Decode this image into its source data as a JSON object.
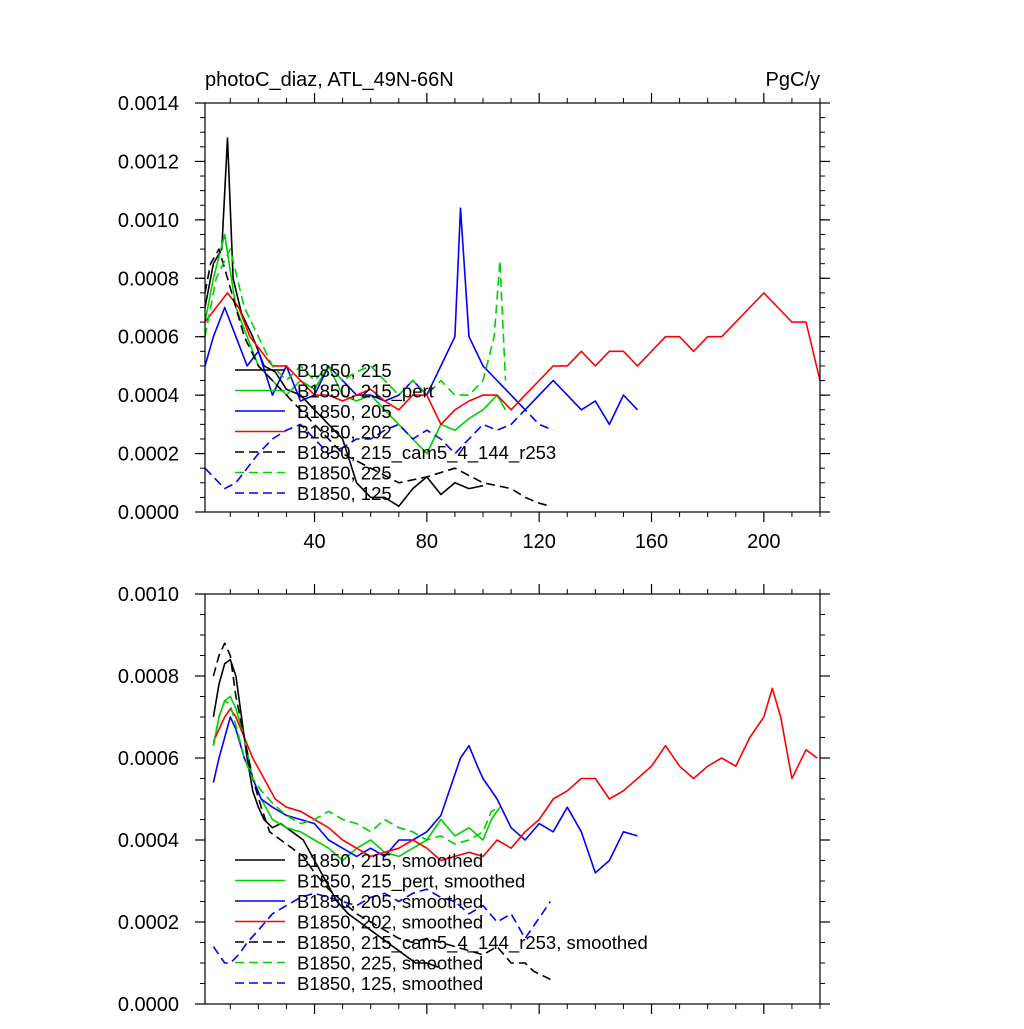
{
  "chart_data": [
    {
      "type": "line",
      "title_left": "photoC_diaz, ATL_49N-66N",
      "title_right": "PgC/y",
      "xlim": [
        1,
        220
      ],
      "ylim": [
        0,
        0.0014
      ],
      "x_ticks": [
        40,
        80,
        120,
        160,
        200
      ],
      "x_tick_labels": [
        "40",
        "80",
        "120",
        "160",
        "200"
      ],
      "y_ticks": [
        0,
        0.0002,
        0.0004,
        0.0006,
        0.0008,
        0.001,
        0.0012,
        0.0014
      ],
      "y_tick_labels": [
        "0.0000",
        "0.0002",
        "0.0004",
        "0.0006",
        "0.0008",
        "0.0010",
        "0.0012",
        "0.0014"
      ],
      "legend": [
        "B1850, 215",
        "B1850, 215_pert",
        "B1850, 205",
        "B1850, 202",
        "B1850, 215_cam5_4_144_r253",
        "B1850, 225",
        "B1850, 125"
      ],
      "series": [
        {
          "name": "B1850, 215",
          "color": "#000000",
          "dash": "solid",
          "x": [
            1,
            4,
            7,
            9,
            11,
            14,
            18,
            22,
            26,
            30,
            35,
            40,
            45,
            50,
            55,
            60,
            65,
            70,
            75,
            80,
            85,
            90,
            95,
            100
          ],
          "values": [
            0.0007,
            0.00085,
            0.0009,
            0.00128,
            0.0008,
            0.00068,
            0.0006,
            0.0005,
            0.00048,
            0.00042,
            0.0004,
            0.00035,
            0.0003,
            0.00025,
            0.0001,
            5e-05,
            5e-05,
            2e-05,
            8e-05,
            0.00012,
            6e-05,
            0.0001,
            8e-05,
            9e-05
          ]
        },
        {
          "name": "B1850, 215_pert",
          "color": "#00d000",
          "dash": "solid",
          "x": [
            1,
            4,
            8,
            12,
            16,
            20,
            25,
            30,
            35,
            40,
            45,
            50,
            55,
            60,
            65,
            70,
            75,
            80,
            85,
            90,
            95,
            100,
            105,
            108
          ],
          "values": [
            0.00065,
            0.0008,
            0.00095,
            0.0007,
            0.0006,
            0.0005,
            0.00045,
            0.0004,
            0.00045,
            0.00042,
            0.0005,
            0.0004,
            0.00038,
            0.0004,
            0.00035,
            0.0003,
            0.00025,
            0.0002,
            0.0003,
            0.00028,
            0.00032,
            0.00035,
            0.0004,
            0.00035
          ]
        },
        {
          "name": "B1850, 205",
          "color": "#0000ff",
          "dash": "solid",
          "x": [
            1,
            4,
            8,
            12,
            16,
            20,
            25,
            30,
            35,
            40,
            45,
            50,
            55,
            60,
            65,
            70,
            75,
            80,
            85,
            90,
            92,
            95,
            100,
            105,
            110,
            115,
            120,
            125,
            130,
            135,
            140,
            145,
            150,
            155
          ],
          "values": [
            0.0005,
            0.0006,
            0.0007,
            0.0006,
            0.0005,
            0.00055,
            0.0004,
            0.0005,
            0.00038,
            0.0004,
            0.0005,
            0.00045,
            0.0004,
            0.0004,
            0.00038,
            0.0004,
            0.00045,
            0.0004,
            0.0005,
            0.0006,
            0.00104,
            0.0006,
            0.0005,
            0.00045,
            0.0004,
            0.00035,
            0.0004,
            0.00045,
            0.0004,
            0.00035,
            0.00038,
            0.0003,
            0.0004,
            0.00035
          ]
        },
        {
          "name": "B1850, 202",
          "color": "#ff0000",
          "dash": "solid",
          "x": [
            1,
            5,
            9,
            13,
            17,
            21,
            25,
            30,
            35,
            40,
            45,
            50,
            55,
            60,
            65,
            70,
            75,
            80,
            85,
            90,
            95,
            100,
            105,
            110,
            115,
            120,
            125,
            130,
            135,
            140,
            145,
            150,
            155,
            160,
            165,
            170,
            175,
            180,
            185,
            190,
            195,
            200,
            205,
            210,
            215,
            220
          ],
          "values": [
            0.00065,
            0.0007,
            0.00075,
            0.0007,
            0.0006,
            0.00055,
            0.0005,
            0.0005,
            0.00045,
            0.0004,
            0.0004,
            0.00038,
            0.0004,
            0.00042,
            0.00038,
            0.00035,
            0.0004,
            0.0004,
            0.0003,
            0.00035,
            0.00038,
            0.0004,
            0.0004,
            0.00035,
            0.0004,
            0.00045,
            0.0005,
            0.0005,
            0.00055,
            0.0005,
            0.00055,
            0.00055,
            0.0005,
            0.00055,
            0.0006,
            0.0006,
            0.00055,
            0.0006,
            0.0006,
            0.00065,
            0.0007,
            0.00075,
            0.0007,
            0.00065,
            0.00065,
            0.00045
          ]
        },
        {
          "name": "B1850, 215_cam5_4_144_r253",
          "color": "#000000",
          "dash": "dashed",
          "x": [
            1,
            3,
            6,
            9,
            12,
            15,
            20,
            25,
            30,
            35,
            40,
            45,
            50,
            60,
            70,
            80,
            90,
            100,
            110,
            115,
            120,
            124
          ],
          "values": [
            0.00075,
            0.00085,
            0.0009,
            0.0008,
            0.0007,
            0.0006,
            0.0005,
            0.00045,
            0.0004,
            0.00035,
            0.0003,
            0.00025,
            0.0002,
            0.00015,
            0.0001,
            0.00012,
            0.00015,
            0.0001,
            8e-05,
            5e-05,
            3e-05,
            2e-05
          ]
        },
        {
          "name": "B1850, 225",
          "color": "#00d000",
          "dash": "dashed",
          "x": [
            1,
            5,
            10,
            15,
            20,
            25,
            30,
            35,
            40,
            45,
            50,
            55,
            60,
            65,
            70,
            75,
            80,
            85,
            90,
            95,
            100,
            104,
            106,
            108
          ],
          "values": [
            0.0006,
            0.0008,
            0.0009,
            0.0007,
            0.0006,
            0.0005,
            0.00045,
            0.0005,
            0.00045,
            0.0005,
            0.00045,
            0.00048,
            0.0005,
            0.00045,
            0.0004,
            0.00045,
            0.0004,
            0.00045,
            0.0004,
            0.0004,
            0.00045,
            0.0006,
            0.00086,
            0.00045
          ]
        },
        {
          "name": "B1850, 125",
          "color": "#0000ff",
          "dash": "dashed",
          "x": [
            1,
            4,
            8,
            12,
            16,
            20,
            25,
            30,
            35,
            40,
            45,
            50,
            55,
            60,
            65,
            70,
            75,
            80,
            85,
            90,
            95,
            100,
            105,
            110,
            115,
            120,
            125
          ],
          "values": [
            0.00015,
            0.00012,
            8e-05,
            0.0001,
            0.00015,
            0.0002,
            0.00025,
            0.00028,
            0.0003,
            0.00025,
            0.0002,
            0.00022,
            0.00025,
            0.00025,
            0.00028,
            0.0003,
            0.00025,
            0.00028,
            0.00025,
            0.0002,
            0.00025,
            0.0003,
            0.00028,
            0.0003,
            0.00035,
            0.0003,
            0.00028
          ]
        }
      ]
    },
    {
      "type": "line",
      "xlim": [
        1,
        220
      ],
      "ylim": [
        0,
        0.001
      ],
      "x_ticks": [
        40,
        80,
        120,
        160,
        200
      ],
      "y_ticks": [
        0,
        0.0002,
        0.0004,
        0.0006,
        0.0008,
        0.001
      ],
      "y_tick_labels": [
        "0.0000",
        "0.0002",
        "0.0004",
        "0.0006",
        "0.0008",
        "0.0010"
      ],
      "legend": [
        "B1850, 215, smoothed",
        "B1850, 215_pert, smoothed",
        "B1850, 205, smoothed",
        "B1850, 202, smoothed",
        "B1850, 215_cam5_4_144_r253, smoothed",
        "B1850, 225, smoothed",
        "B1850, 125, smoothed"
      ],
      "series": [
        {
          "name": "B1850, 215, smoothed",
          "color": "#000000",
          "dash": "solid",
          "x": [
            4,
            6,
            8,
            10,
            12,
            14,
            16,
            18,
            20,
            22,
            25,
            28,
            32,
            36,
            40,
            44,
            48,
            52,
            56,
            60,
            64,
            68,
            72,
            76,
            80,
            84
          ],
          "values": [
            0.0007,
            0.00078,
            0.00083,
            0.00084,
            0.0008,
            0.0007,
            0.0006,
            0.00052,
            0.00048,
            0.00045,
            0.00043,
            0.00044,
            0.00042,
            0.0004,
            0.00035,
            0.0003,
            0.00025,
            0.00022,
            0.0002,
            0.00018,
            0.00016,
            0.00014,
            0.00012,
            0.0001,
            0.0001,
            9e-05
          ]
        },
        {
          "name": "B1850, 215_pert, smoothed",
          "color": "#00d000",
          "dash": "solid",
          "x": [
            4,
            6,
            8,
            10,
            12,
            15,
            18,
            21,
            25,
            30,
            35,
            40,
            45,
            50,
            55,
            60,
            65,
            70,
            75,
            80,
            85,
            90,
            95,
            100,
            103,
            106
          ],
          "values": [
            0.00063,
            0.0007,
            0.00074,
            0.00075,
            0.00072,
            0.00065,
            0.00055,
            0.0005,
            0.00045,
            0.00043,
            0.00042,
            0.0004,
            0.00038,
            0.00035,
            0.00038,
            0.0004,
            0.00037,
            0.00036,
            0.00038,
            0.0004,
            0.00045,
            0.00041,
            0.00043,
            0.0004,
            0.00045,
            0.00048
          ]
        },
        {
          "name": "B1850, 205, smoothed",
          "color": "#0000ff",
          "dash": "solid",
          "x": [
            4,
            6,
            8,
            10,
            12,
            15,
            18,
            21,
            25,
            30,
            35,
            40,
            45,
            50,
            55,
            60,
            65,
            70,
            75,
            80,
            85,
            88,
            92,
            95,
            98,
            100,
            105,
            110,
            115,
            120,
            125,
            130,
            135,
            140,
            145,
            150,
            155
          ],
          "values": [
            0.00054,
            0.0006,
            0.00065,
            0.0007,
            0.00067,
            0.0006,
            0.00055,
            0.0005,
            0.00048,
            0.00046,
            0.00045,
            0.00044,
            0.0004,
            0.00038,
            0.00036,
            0.00038,
            0.00036,
            0.0004,
            0.0004,
            0.00042,
            0.00046,
            0.00052,
            0.0006,
            0.00063,
            0.00058,
            0.00055,
            0.0005,
            0.00043,
            0.0004,
            0.00044,
            0.00042,
            0.00048,
            0.00042,
            0.00032,
            0.00035,
            0.00042,
            0.00041
          ]
        },
        {
          "name": "B1850, 202, smoothed",
          "color": "#ff0000",
          "dash": "solid",
          "x": [
            4,
            6,
            8,
            10,
            12,
            15,
            18,
            22,
            26,
            30,
            35,
            40,
            45,
            50,
            55,
            60,
            65,
            70,
            75,
            80,
            85,
            90,
            95,
            100,
            105,
            110,
            115,
            120,
            125,
            130,
            135,
            140,
            145,
            150,
            155,
            160,
            165,
            170,
            175,
            180,
            185,
            190,
            195,
            200,
            203,
            206,
            210,
            215,
            219
          ],
          "values": [
            0.00064,
            0.00067,
            0.0007,
            0.00072,
            0.0007,
            0.00065,
            0.0006,
            0.00055,
            0.0005,
            0.00048,
            0.00047,
            0.00045,
            0.00043,
            0.0004,
            0.00038,
            0.00036,
            0.00037,
            0.00038,
            0.0004,
            0.00038,
            0.00035,
            0.00036,
            0.00037,
            0.00036,
            0.0004,
            0.00038,
            0.00042,
            0.00045,
            0.0005,
            0.00052,
            0.00055,
            0.00055,
            0.0005,
            0.00052,
            0.00055,
            0.00058,
            0.00063,
            0.00058,
            0.00055,
            0.00058,
            0.0006,
            0.00058,
            0.00065,
            0.0007,
            0.00077,
            0.0007,
            0.00055,
            0.00062,
            0.0006
          ]
        },
        {
          "name": "B1850, 215_cam5_4_144_r253, smoothed",
          "color": "#000000",
          "dash": "dashed",
          "x": [
            4,
            6,
            8,
            10,
            12,
            15,
            18,
            21,
            24,
            28,
            32,
            36,
            40,
            45,
            50,
            55,
            60,
            65,
            70,
            75,
            80,
            85,
            90,
            95,
            100,
            105,
            110,
            115,
            118,
            121,
            124
          ],
          "values": [
            0.0008,
            0.00085,
            0.00088,
            0.00085,
            0.00075,
            0.00065,
            0.00055,
            0.00048,
            0.00042,
            0.0004,
            0.00038,
            0.00036,
            0.00032,
            0.00028,
            0.00025,
            0.00022,
            0.0002,
            0.00018,
            0.00016,
            0.00015,
            0.00016,
            0.00015,
            0.00014,
            0.00013,
            0.00012,
            0.00014,
            0.0001,
            0.0001,
            8e-05,
            7e-05,
            6e-05
          ]
        },
        {
          "name": "B1850, 225, smoothed",
          "color": "#00d000",
          "dash": "dashed",
          "x": [
            4,
            6,
            8,
            10,
            12,
            15,
            18,
            21,
            25,
            30,
            35,
            40,
            45,
            50,
            55,
            60,
            65,
            70,
            75,
            80,
            85,
            90,
            95,
            100,
            103,
            106
          ],
          "values": [
            0.00063,
            0.0007,
            0.00074,
            0.00073,
            0.00068,
            0.0006,
            0.00055,
            0.00052,
            0.00049,
            0.00046,
            0.00044,
            0.00045,
            0.00047,
            0.00045,
            0.00044,
            0.00042,
            0.00045,
            0.00043,
            0.00042,
            0.0004,
            0.00041,
            0.00039,
            0.0004,
            0.00042,
            0.00047,
            0.00048
          ]
        },
        {
          "name": "B1850, 125, smoothed",
          "color": "#0000ff",
          "dash": "dashed",
          "x": [
            4,
            6,
            8,
            10,
            13,
            16,
            20,
            25,
            30,
            35,
            40,
            45,
            50,
            55,
            60,
            65,
            70,
            75,
            80,
            85,
            90,
            95,
            100,
            105,
            110,
            115,
            120,
            124
          ],
          "values": [
            0.00014,
            0.00012,
            0.0001,
            0.0001,
            0.00012,
            0.00015,
            0.00018,
            0.00022,
            0.00024,
            0.00026,
            0.00027,
            0.00026,
            0.00025,
            0.00024,
            0.00026,
            0.00027,
            0.00025,
            0.00027,
            0.00028,
            0.00026,
            0.00025,
            0.00022,
            0.00024,
            0.0002,
            0.00022,
            0.00016,
            0.00021,
            0.00025
          ]
        }
      ]
    }
  ]
}
